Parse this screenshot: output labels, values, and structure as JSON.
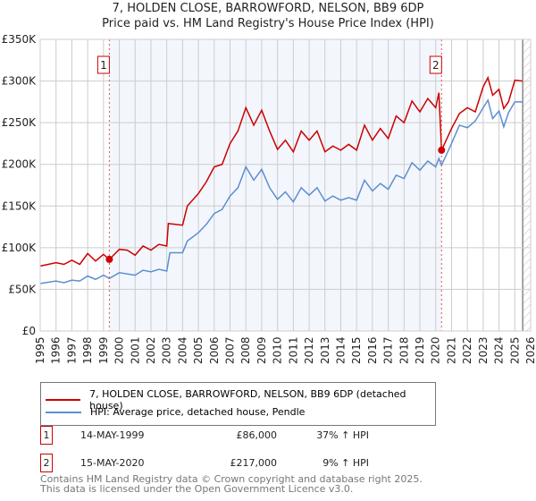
{
  "title": "7, HOLDEN CLOSE, BARROWFORD, NELSON, BB9 6DP",
  "subtitle": "Price paid vs. HM Land Registry's House Price Index (HPI)",
  "chart_data": {
    "type": "line",
    "xlim": [
      1995,
      2026
    ],
    "ylim": [
      0,
      350000
    ],
    "x_ticks": [
      "1995",
      "1996",
      "1997",
      "1998",
      "1999",
      "2000",
      "2001",
      "2002",
      "2003",
      "2004",
      "2005",
      "2006",
      "2007",
      "2008",
      "2009",
      "2010",
      "2011",
      "2012",
      "2013",
      "2014",
      "2015",
      "2016",
      "2017",
      "2018",
      "2019",
      "2020",
      "2021",
      "2022",
      "2023",
      "2024",
      "2025",
      "2026"
    ],
    "y_ticks": [
      {
        "v": 0,
        "l": "£0"
      },
      {
        "v": 50000,
        "l": "£50K"
      },
      {
        "v": 100000,
        "l": "£100K"
      },
      {
        "v": 150000,
        "l": "£150K"
      },
      {
        "v": 200000,
        "l": "£200K"
      },
      {
        "v": 250000,
        "l": "£250K"
      },
      {
        "v": 300000,
        "l": "£300K"
      },
      {
        "v": 350000,
        "l": "£350K"
      }
    ],
    "grid": true,
    "shaded_range": [
      1999.37,
      2020.37
    ],
    "forecast_from": 2025.5,
    "series": [
      {
        "name": "7, HOLDEN CLOSE, BARROWFORD, NELSON, BB9 6DP (detached house)",
        "color": "#cc0000",
        "x": [
          1995,
          1996,
          1996.5,
          1997,
          1997.5,
          1998,
          1998.5,
          1999,
          1999.37,
          2000,
          2000.5,
          2001,
          2001.5,
          2002,
          2002.5,
          2003,
          2003.1,
          2004,
          2004.3,
          2005,
          2005.5,
          2006,
          2006.5,
          2007,
          2007.5,
          2008,
          2008.5,
          2009,
          2009.5,
          2010,
          2010.5,
          2011,
          2011.5,
          2012,
          2012.5,
          2013,
          2013.5,
          2014,
          2014.5,
          2015,
          2015.5,
          2016,
          2016.5,
          2017,
          2017.5,
          2018,
          2018.5,
          2019,
          2019.5,
          2020,
          2020.2,
          2020.37,
          2021,
          2021.5,
          2022,
          2022.5,
          2023,
          2023.3,
          2023.6,
          2024,
          2024.3,
          2024.6,
          2025,
          2025.5
        ],
        "y": [
          78,
          82,
          80,
          85,
          80,
          93,
          84,
          92,
          86,
          98,
          97,
          91,
          102,
          97,
          104,
          102,
          129,
          127,
          150,
          165,
          179,
          197,
          200,
          225,
          240,
          268,
          247,
          265,
          240,
          218,
          229,
          215,
          240,
          229,
          240,
          215,
          222,
          217,
          224,
          217,
          247,
          229,
          243,
          231,
          258,
          250,
          276,
          263,
          279,
          268,
          286,
          217,
          243,
          261,
          268,
          263,
          293,
          304,
          283,
          290,
          267,
          275,
          301,
          300
        ]
      },
      {
        "name": "HPI: Average price, detached house, Pendle",
        "color": "#5b8fd0",
        "x": [
          1995,
          1996,
          1996.5,
          1997,
          1997.5,
          1998,
          1998.5,
          1999,
          1999.37,
          2000,
          2001,
          2001.5,
          2002,
          2002.5,
          2003,
          2003.2,
          2004,
          2004.3,
          2005,
          2005.5,
          2006,
          2006.5,
          2007,
          2007.5,
          2008,
          2008.5,
          2009,
          2009.5,
          2010,
          2010.5,
          2011,
          2011.5,
          2012,
          2012.5,
          2013,
          2013.5,
          2014,
          2014.5,
          2015,
          2015.5,
          2016,
          2016.5,
          2017,
          2017.5,
          2018,
          2018.5,
          2019,
          2019.5,
          2020,
          2020.2,
          2020.37,
          2021,
          2021.5,
          2022,
          2022.5,
          2023,
          2023.3,
          2023.6,
          2024,
          2024.3,
          2024.6,
          2025,
          2025.5
        ],
        "y": [
          57,
          60,
          58,
          61,
          60,
          66,
          62,
          67,
          63,
          70,
          67,
          73,
          71,
          74,
          72,
          94,
          94,
          108,
          118,
          128,
          141,
          146,
          162,
          172,
          197,
          181,
          194,
          172,
          158,
          167,
          155,
          172,
          163,
          172,
          156,
          162,
          157,
          160,
          157,
          181,
          168,
          177,
          170,
          187,
          183,
          202,
          193,
          204,
          197,
          207,
          199,
          225,
          247,
          244,
          252,
          268,
          277,
          255,
          264,
          245,
          262,
          275,
          275
        ]
      }
    ],
    "y_unit": "thousands GBP",
    "markers": [
      {
        "label": "1",
        "x": 1999.37,
        "y": 86
      },
      {
        "label": "2",
        "x": 2020.37,
        "y": 217
      }
    ]
  },
  "transactions": [
    {
      "num": "1",
      "date": "14-MAY-1999",
      "price": "£86,000",
      "hpi": "37% ↑ HPI"
    },
    {
      "num": "2",
      "date": "15-MAY-2020",
      "price": "£217,000",
      "hpi": "9% ↑ HPI"
    }
  ],
  "footer": [
    "Contains HM Land Registry data © Crown copyright and database right 2025.",
    "This data is licensed under the Open Government Licence v3.0."
  ]
}
